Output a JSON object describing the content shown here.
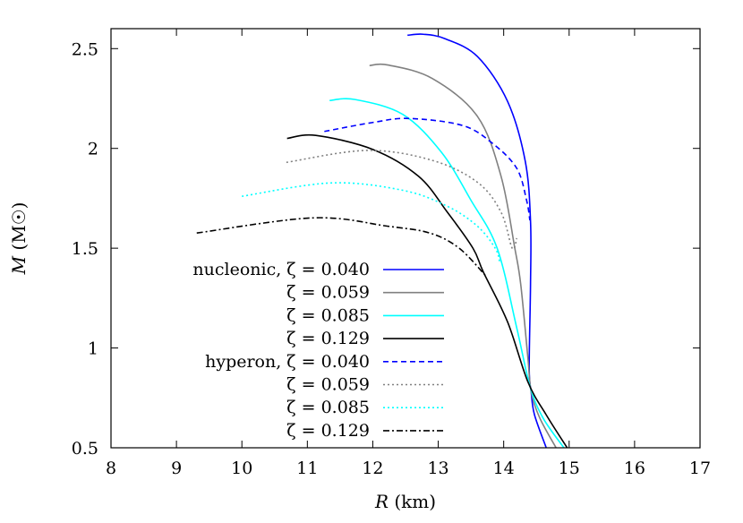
{
  "chart_data": {
    "type": "line",
    "xlabel": "R (km)",
    "ylabel": "M (M☉)",
    "xlim": [
      8,
      17
    ],
    "ylim": [
      0.5,
      2.6
    ],
    "xticks": [
      "8",
      "9",
      "10",
      "11",
      "12",
      "13",
      "14",
      "15",
      "16",
      "17"
    ],
    "yticks": [
      "0.5",
      "1",
      "1.5",
      "2",
      "2.5"
    ],
    "grid": false,
    "legend_position": "lower-left-center",
    "series": [
      {
        "name": "nucleonic, ζ = 0.040",
        "color": "#0000ff",
        "style": "solid",
        "points": [
          [
            12.53,
            2.567
          ],
          [
            12.77,
            2.572
          ],
          [
            13.1,
            2.55
          ],
          [
            13.6,
            2.46
          ],
          [
            14.06,
            2.235
          ],
          [
            14.33,
            1.935
          ],
          [
            14.41,
            1.635
          ],
          [
            14.41,
            1.32
          ],
          [
            14.39,
            0.9
          ],
          [
            14.42,
            0.78
          ],
          [
            14.47,
            0.666
          ],
          [
            14.65,
            0.5
          ]
        ]
      },
      {
        "name": "ζ = 0.059",
        "color": "#808080",
        "style": "solid",
        "points": [
          [
            11.95,
            2.415
          ],
          [
            12.23,
            2.418
          ],
          [
            12.91,
            2.35
          ],
          [
            13.6,
            2.16
          ],
          [
            13.96,
            1.86
          ],
          [
            14.17,
            1.5
          ],
          [
            14.26,
            1.32
          ],
          [
            14.37,
            0.95
          ],
          [
            14.42,
            0.78
          ],
          [
            14.55,
            0.65
          ],
          [
            14.8,
            0.5
          ]
        ]
      },
      {
        "name": "ζ = 0.085",
        "color": "#00ffff",
        "style": "solid",
        "points": [
          [
            11.34,
            2.24
          ],
          [
            11.73,
            2.245
          ],
          [
            12.46,
            2.17
          ],
          [
            13.05,
            1.98
          ],
          [
            13.5,
            1.74
          ],
          [
            13.9,
            1.5
          ],
          [
            14.2,
            1.1
          ],
          [
            14.4,
            0.81
          ],
          [
            14.6,
            0.65
          ],
          [
            14.92,
            0.5
          ]
        ]
      },
      {
        "name": "ζ = 0.129",
        "color": "#000000",
        "style": "solid",
        "points": [
          [
            10.69,
            2.05
          ],
          [
            11.13,
            2.065
          ],
          [
            12.0,
            1.995
          ],
          [
            12.7,
            1.86
          ],
          [
            13.14,
            1.68
          ],
          [
            13.53,
            1.5
          ],
          [
            13.69,
            1.38
          ],
          [
            14.06,
            1.13
          ],
          [
            14.37,
            0.83
          ],
          [
            14.65,
            0.665
          ],
          [
            14.97,
            0.5
          ]
        ]
      },
      {
        "name": "hyperon, ζ = 0.040",
        "color": "#0000ff",
        "style": "dashed",
        "points": [
          [
            11.26,
            2.085
          ],
          [
            12.0,
            2.13
          ],
          [
            12.55,
            2.15
          ],
          [
            13.37,
            2.115
          ],
          [
            13.83,
            2.025
          ],
          [
            14.2,
            1.9
          ],
          [
            14.35,
            1.74
          ],
          [
            14.4,
            1.64
          ]
        ]
      },
      {
        "name": "ζ = 0.059",
        "color": "#808080",
        "style": "dotted",
        "points": [
          [
            10.68,
            1.93
          ],
          [
            11.91,
            1.99
          ],
          [
            12.91,
            1.94
          ],
          [
            13.6,
            1.83
          ],
          [
            13.96,
            1.68
          ],
          [
            14.13,
            1.5
          ],
          [
            14.2,
            1.55
          ]
        ]
      },
      {
        "name": "ζ = 0.085",
        "color": "#00ffff",
        "style": "dotted",
        "points": [
          [
            10.0,
            1.76
          ],
          [
            11.36,
            1.827
          ],
          [
            12.46,
            1.79
          ],
          [
            13.14,
            1.71
          ],
          [
            13.6,
            1.61
          ],
          [
            13.87,
            1.5
          ],
          [
            13.94,
            1.43
          ]
        ]
      },
      {
        "name": "ζ = 0.129",
        "color": "#000000",
        "style": "dashdot",
        "points": [
          [
            9.31,
            1.576
          ],
          [
            11.09,
            1.652
          ],
          [
            12.23,
            1.61
          ],
          [
            12.87,
            1.576
          ],
          [
            13.32,
            1.5
          ],
          [
            13.73,
            1.36
          ]
        ]
      }
    ]
  }
}
